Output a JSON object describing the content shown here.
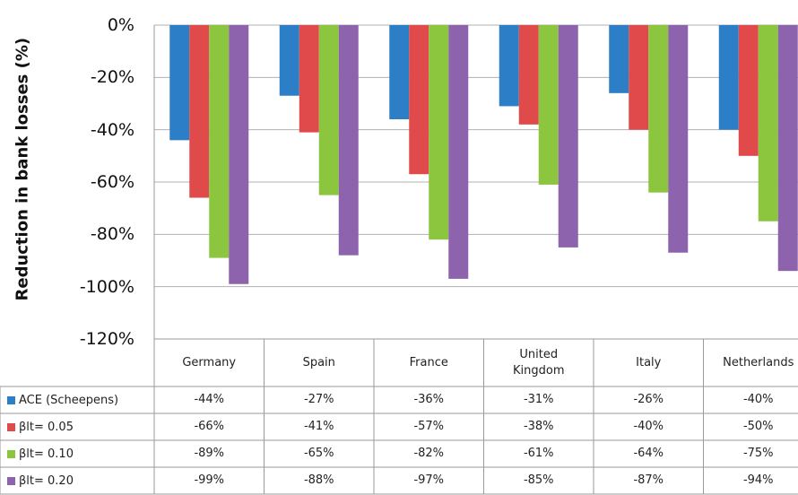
{
  "chart_data": {
    "type": "bar",
    "y_label": "Reduction in bank losses (%)",
    "categories": [
      "Germany",
      "Spain",
      "France",
      "United Kingdom",
      "Italy",
      "Netherlands"
    ],
    "ylim": [
      -120,
      0
    ],
    "yticks": [
      {
        "value": 0,
        "label": "0%"
      },
      {
        "value": -20,
        "label": "-20%"
      },
      {
        "value": -40,
        "label": "-40%"
      },
      {
        "value": -60,
        "label": "-60%"
      },
      {
        "value": -80,
        "label": "-80%"
      },
      {
        "value": -100,
        "label": "-100%"
      },
      {
        "value": -120,
        "label": "-120%"
      }
    ],
    "grid": true,
    "series": [
      {
        "name": "ACE (Scheepens)",
        "color": "#2c7fc6",
        "values": [
          -44,
          -27,
          -36,
          -31,
          -26,
          -40
        ],
        "value_labels": [
          "-44%",
          "-27%",
          "-36%",
          "-31%",
          "-26%",
          "-40%"
        ]
      },
      {
        "name": "βlt= 0.05",
        "color": "#e04a4a",
        "values": [
          -66,
          -41,
          -57,
          -38,
          -40,
          -50
        ],
        "value_labels": [
          "-66%",
          "-41%",
          "-57%",
          "-38%",
          "-40%",
          "-50%"
        ]
      },
      {
        "name": "βlt= 0.10",
        "color": "#8cc63f",
        "values": [
          -89,
          -65,
          -82,
          -61,
          -64,
          -75
        ],
        "value_labels": [
          "-89%",
          "-65%",
          "-82%",
          "-61%",
          "-64%",
          "-75%"
        ]
      },
      {
        "name": "βlt= 0.20",
        "color": "#8e63ad",
        "values": [
          -99,
          -88,
          -97,
          -85,
          -87,
          -94
        ],
        "value_labels": [
          "-99%",
          "-88%",
          "-97%",
          "-85%",
          "-87%",
          "-94%"
        ]
      }
    ]
  }
}
